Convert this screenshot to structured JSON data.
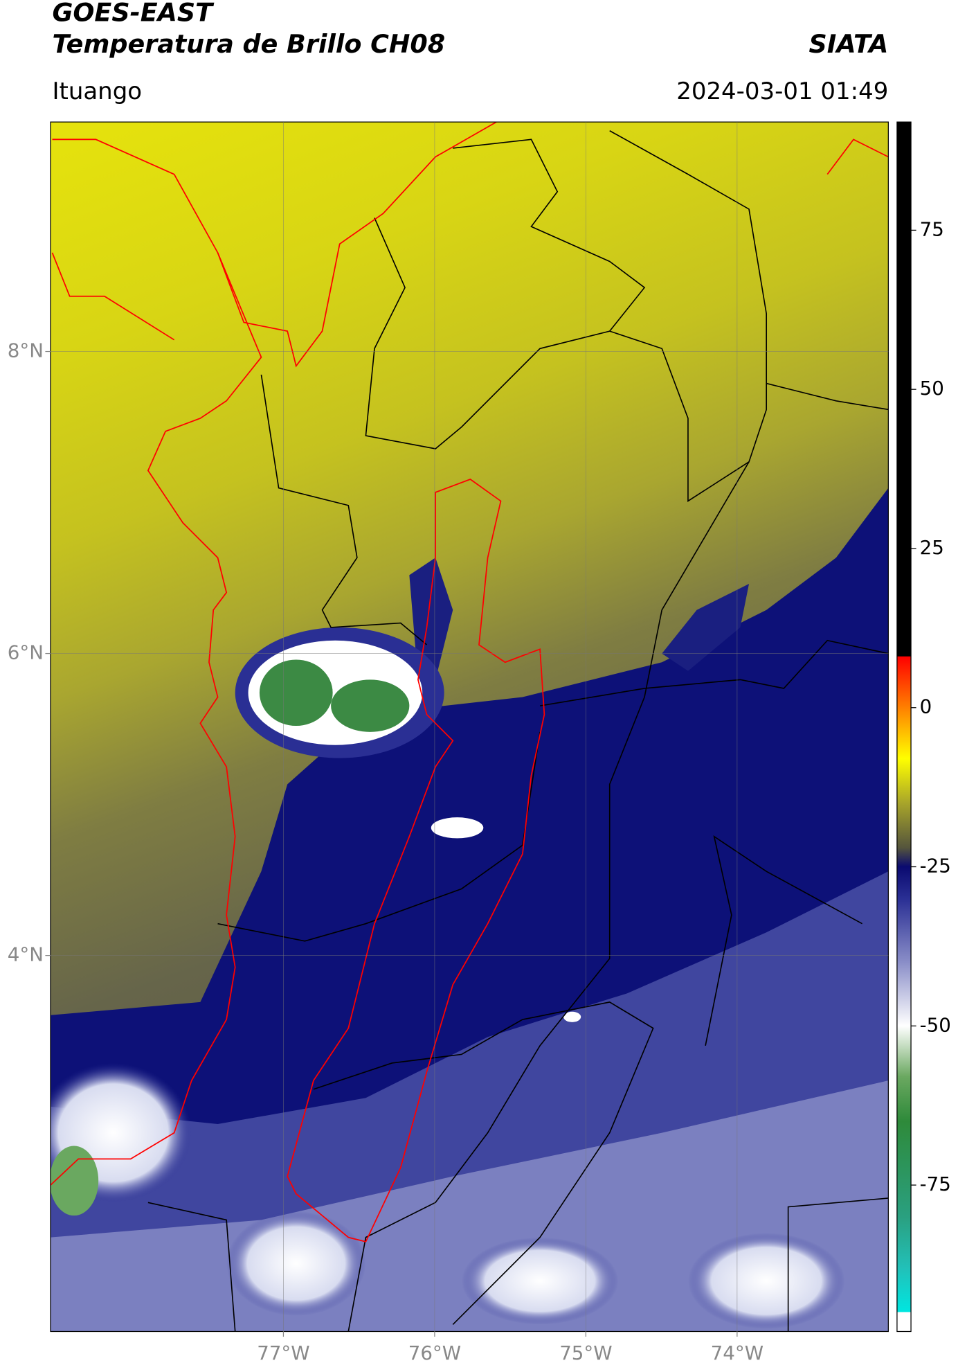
{
  "header": {
    "title": "GOES-EAST",
    "subtitle": "Temperatura de Brillo CH08",
    "source": "SIATA",
    "location": "Ituango",
    "datetime": "2024-03-01 01:49"
  },
  "map": {
    "xlim": [
      -78.54,
      -73.0
    ],
    "ylim": [
      1.51,
      9.52
    ],
    "xticks": [
      {
        "value": -77,
        "label": "77°W"
      },
      {
        "value": -76,
        "label": "76°W"
      },
      {
        "value": -75,
        "label": "75°W"
      },
      {
        "value": -74,
        "label": "74°W"
      }
    ],
    "yticks": [
      {
        "value": 4,
        "label": "4°N"
      },
      {
        "value": 6,
        "label": "6°N"
      },
      {
        "value": 8,
        "label": "8°N"
      }
    ],
    "grid": true
  },
  "colorbar": {
    "lim": [
      -98,
      92
    ],
    "ticks": [
      -75,
      -50,
      -25,
      0,
      25,
      50,
      75
    ],
    "colormap": [
      [
        -98,
        "#ffffff"
      ],
      [
        -95,
        "#ffffff"
      ],
      [
        -94.9,
        "#00e6e0"
      ],
      [
        -88,
        "#22c0b8"
      ],
      [
        -80,
        "#2aa080"
      ],
      [
        -65,
        "#2e8a3a"
      ],
      [
        -58,
        "#6aa860"
      ],
      [
        -50,
        "#ffffff"
      ],
      [
        -40,
        "#8a8ec8"
      ],
      [
        -30,
        "#2a2f94"
      ],
      [
        -25,
        "#0a0a70"
      ],
      [
        -22,
        "#55553c"
      ],
      [
        -15,
        "#a8a52a"
      ],
      [
        -8,
        "#ffff00"
      ],
      [
        -3,
        "#ffb000"
      ],
      [
        8,
        "#ff0000"
      ],
      [
        8.1,
        "#000000"
      ],
      [
        92,
        "#000000"
      ]
    ]
  }
}
